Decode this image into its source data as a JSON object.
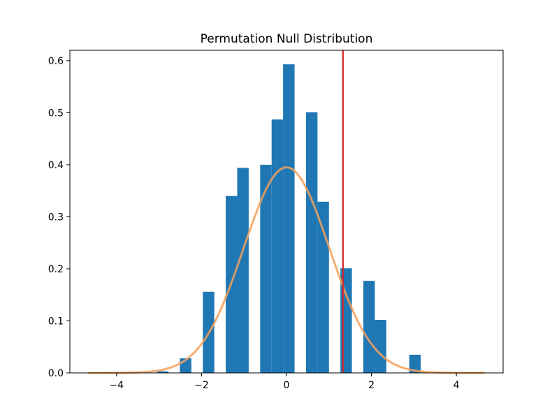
{
  "chart_data": {
    "type": "bar",
    "title": "Permutation Null Distribution",
    "xlabel": "",
    "ylabel": "",
    "xlim": [
      -5.1,
      5.1
    ],
    "ylim": [
      0,
      0.62
    ],
    "x_ticks": [
      -4,
      -2,
      0,
      2,
      4
    ],
    "x_tick_labels": [
      "−4",
      "−2",
      "0",
      "2",
      "4"
    ],
    "y_ticks": [
      0.0,
      0.1,
      0.2,
      0.3,
      0.4,
      0.5,
      0.6
    ],
    "y_tick_labels": [
      "0.0",
      "0.1",
      "0.2",
      "0.3",
      "0.4",
      "0.5",
      "0.6"
    ],
    "grid": false,
    "bar_color": "#1f77b4",
    "histogram": {
      "bin_width": 0.27,
      "bins": [
        {
          "x0": -3.05,
          "x1": -2.78,
          "density": 0.003
        },
        {
          "x0": -2.51,
          "x1": -2.24,
          "density": 0.028
        },
        {
          "x0": -1.97,
          "x1": -1.7,
          "density": 0.156
        },
        {
          "x0": -1.43,
          "x1": -1.16,
          "density": 0.34
        },
        {
          "x0": -1.16,
          "x1": -0.89,
          "density": 0.394
        },
        {
          "x0": -0.62,
          "x1": -0.35,
          "density": 0.4
        },
        {
          "x0": -0.35,
          "x1": -0.08,
          "density": 0.487
        },
        {
          "x0": -0.08,
          "x1": 0.19,
          "density": 0.593
        },
        {
          "x0": 0.46,
          "x1": 0.73,
          "density": 0.501
        },
        {
          "x0": 0.73,
          "x1": 1.0,
          "density": 0.329
        },
        {
          "x0": 1.27,
          "x1": 1.54,
          "density": 0.201
        },
        {
          "x0": 1.81,
          "x1": 2.08,
          "density": 0.177
        },
        {
          "x0": 2.08,
          "x1": 2.35,
          "density": 0.102
        },
        {
          "x0": 2.89,
          "x1": 3.16,
          "density": 0.035
        }
      ]
    },
    "curve": {
      "type": "normal-pdf",
      "mean": 0,
      "sd": 1.01,
      "x_range": [
        -4.65,
        4.65
      ],
      "color": "#f5a05a",
      "opacity": 0.85
    },
    "vline": {
      "x": 1.33,
      "color": "#d62728"
    }
  }
}
